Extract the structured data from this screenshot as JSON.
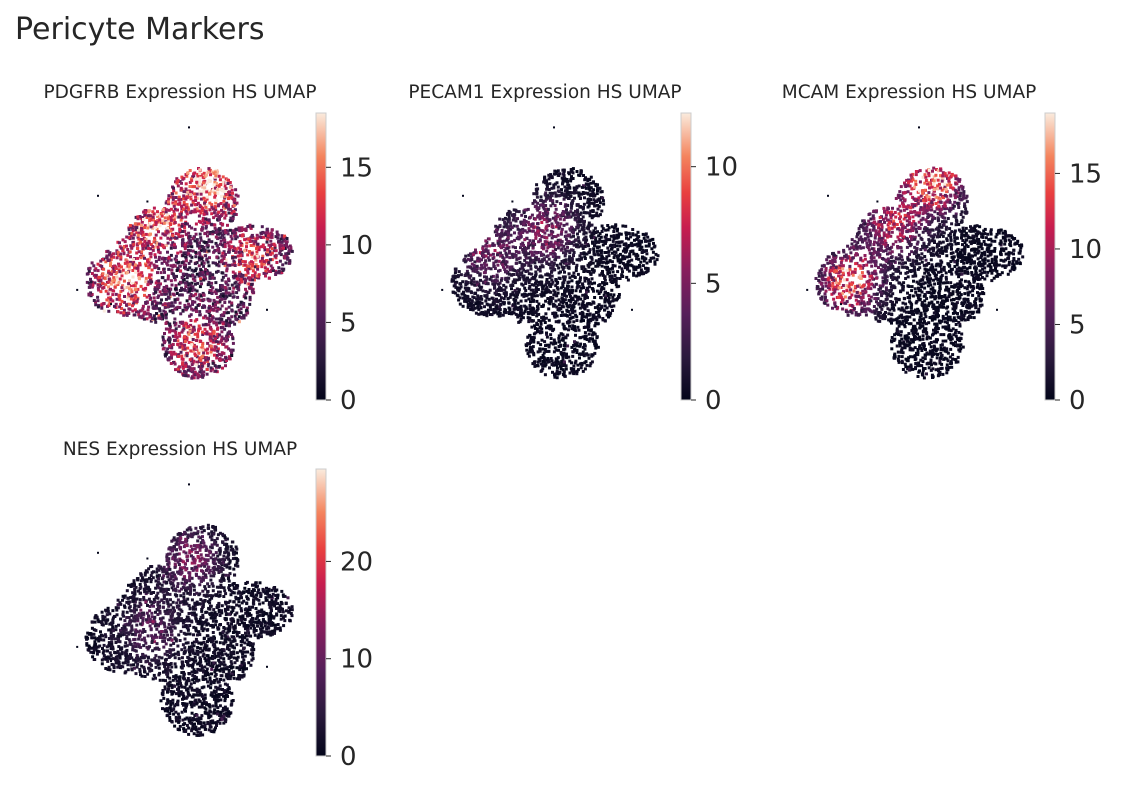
{
  "figure": {
    "title": "Pericyte Markers"
  },
  "chart_data": [
    {
      "type": "scatter",
      "title": "PDGFRB Expression HS UMAP",
      "colorbar": {
        "range": [
          0,
          18.5
        ],
        "ticks": [
          0,
          5,
          10,
          15
        ],
        "colormap": "rocket"
      },
      "hotspots": [
        {
          "x": 0.62,
          "y": 0.24,
          "v": 13
        },
        {
          "x": 0.3,
          "y": 0.58,
          "v": 12
        },
        {
          "x": 0.42,
          "y": 0.38,
          "v": 10
        },
        {
          "x": 0.58,
          "y": 0.8,
          "v": 9
        },
        {
          "x": 0.8,
          "y": 0.5,
          "v": 8
        }
      ],
      "base_level": 6.5,
      "noise": 5
    },
    {
      "type": "scatter",
      "title": "PECAM1 Expression HS UMAP",
      "colorbar": {
        "range": [
          0,
          12.3
        ],
        "ticks": [
          0,
          5,
          10
        ],
        "colormap": "rocket"
      },
      "hotspots": [
        {
          "x": 0.52,
          "y": 0.4,
          "v": 5
        },
        {
          "x": 0.3,
          "y": 0.48,
          "v": 4
        }
      ],
      "base_level": 0.6,
      "noise": 1.2
    },
    {
      "type": "scatter",
      "title": "MCAM Expression HS UMAP",
      "colorbar": {
        "range": [
          0,
          19
        ],
        "ticks": [
          0,
          5,
          10,
          15
        ],
        "colormap": "rocket"
      },
      "hotspots": [
        {
          "x": 0.6,
          "y": 0.22,
          "v": 16
        },
        {
          "x": 0.28,
          "y": 0.58,
          "v": 14
        },
        {
          "x": 0.45,
          "y": 0.38,
          "v": 10
        }
      ],
      "base_level": 0.8,
      "noise": 1.5
    },
    {
      "type": "scatter",
      "title": "NES Expression HS UMAP",
      "colorbar": {
        "range": [
          0,
          29.5
        ],
        "ticks": [
          0,
          10,
          20
        ],
        "colormap": "rocket"
      },
      "hotspots": [
        {
          "x": 0.55,
          "y": 0.3,
          "v": 10
        },
        {
          "x": 0.4,
          "y": 0.55,
          "v": 7
        }
      ],
      "base_level": 2,
      "noise": 3
    }
  ]
}
